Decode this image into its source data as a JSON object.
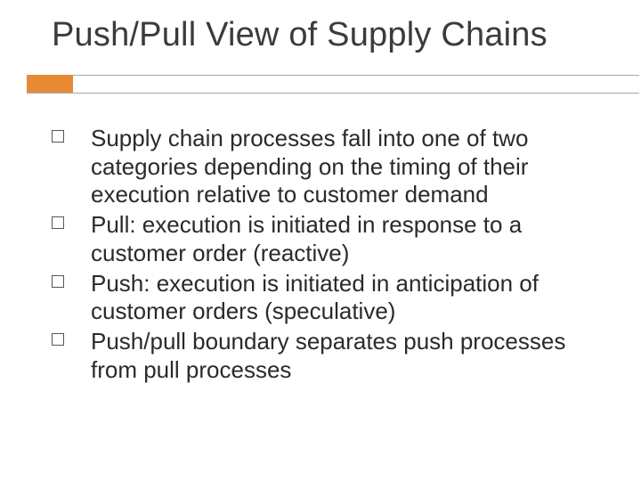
{
  "slide": {
    "title": "Push/Pull View of Supply Chains",
    "title_color": "#3b3b3b",
    "title_fontsize": 38,
    "accent_color": "#e68a33",
    "separator_color": "#a8a8a8",
    "background_color": "#ffffff",
    "body_color": "#2a2a2a",
    "body_fontsize": 26,
    "bullets": [
      {
        "text": "Supply chain processes fall into one of two categories depending on the timing of their execution relative to customer demand"
      },
      {
        "text": "Pull: execution is initiated in response to a customer order (reactive)"
      },
      {
        "text": "Push: execution is initiated in anticipation of customer orders (speculative)"
      },
      {
        "text": "Push/pull boundary separates push processes from pull processes"
      }
    ]
  }
}
